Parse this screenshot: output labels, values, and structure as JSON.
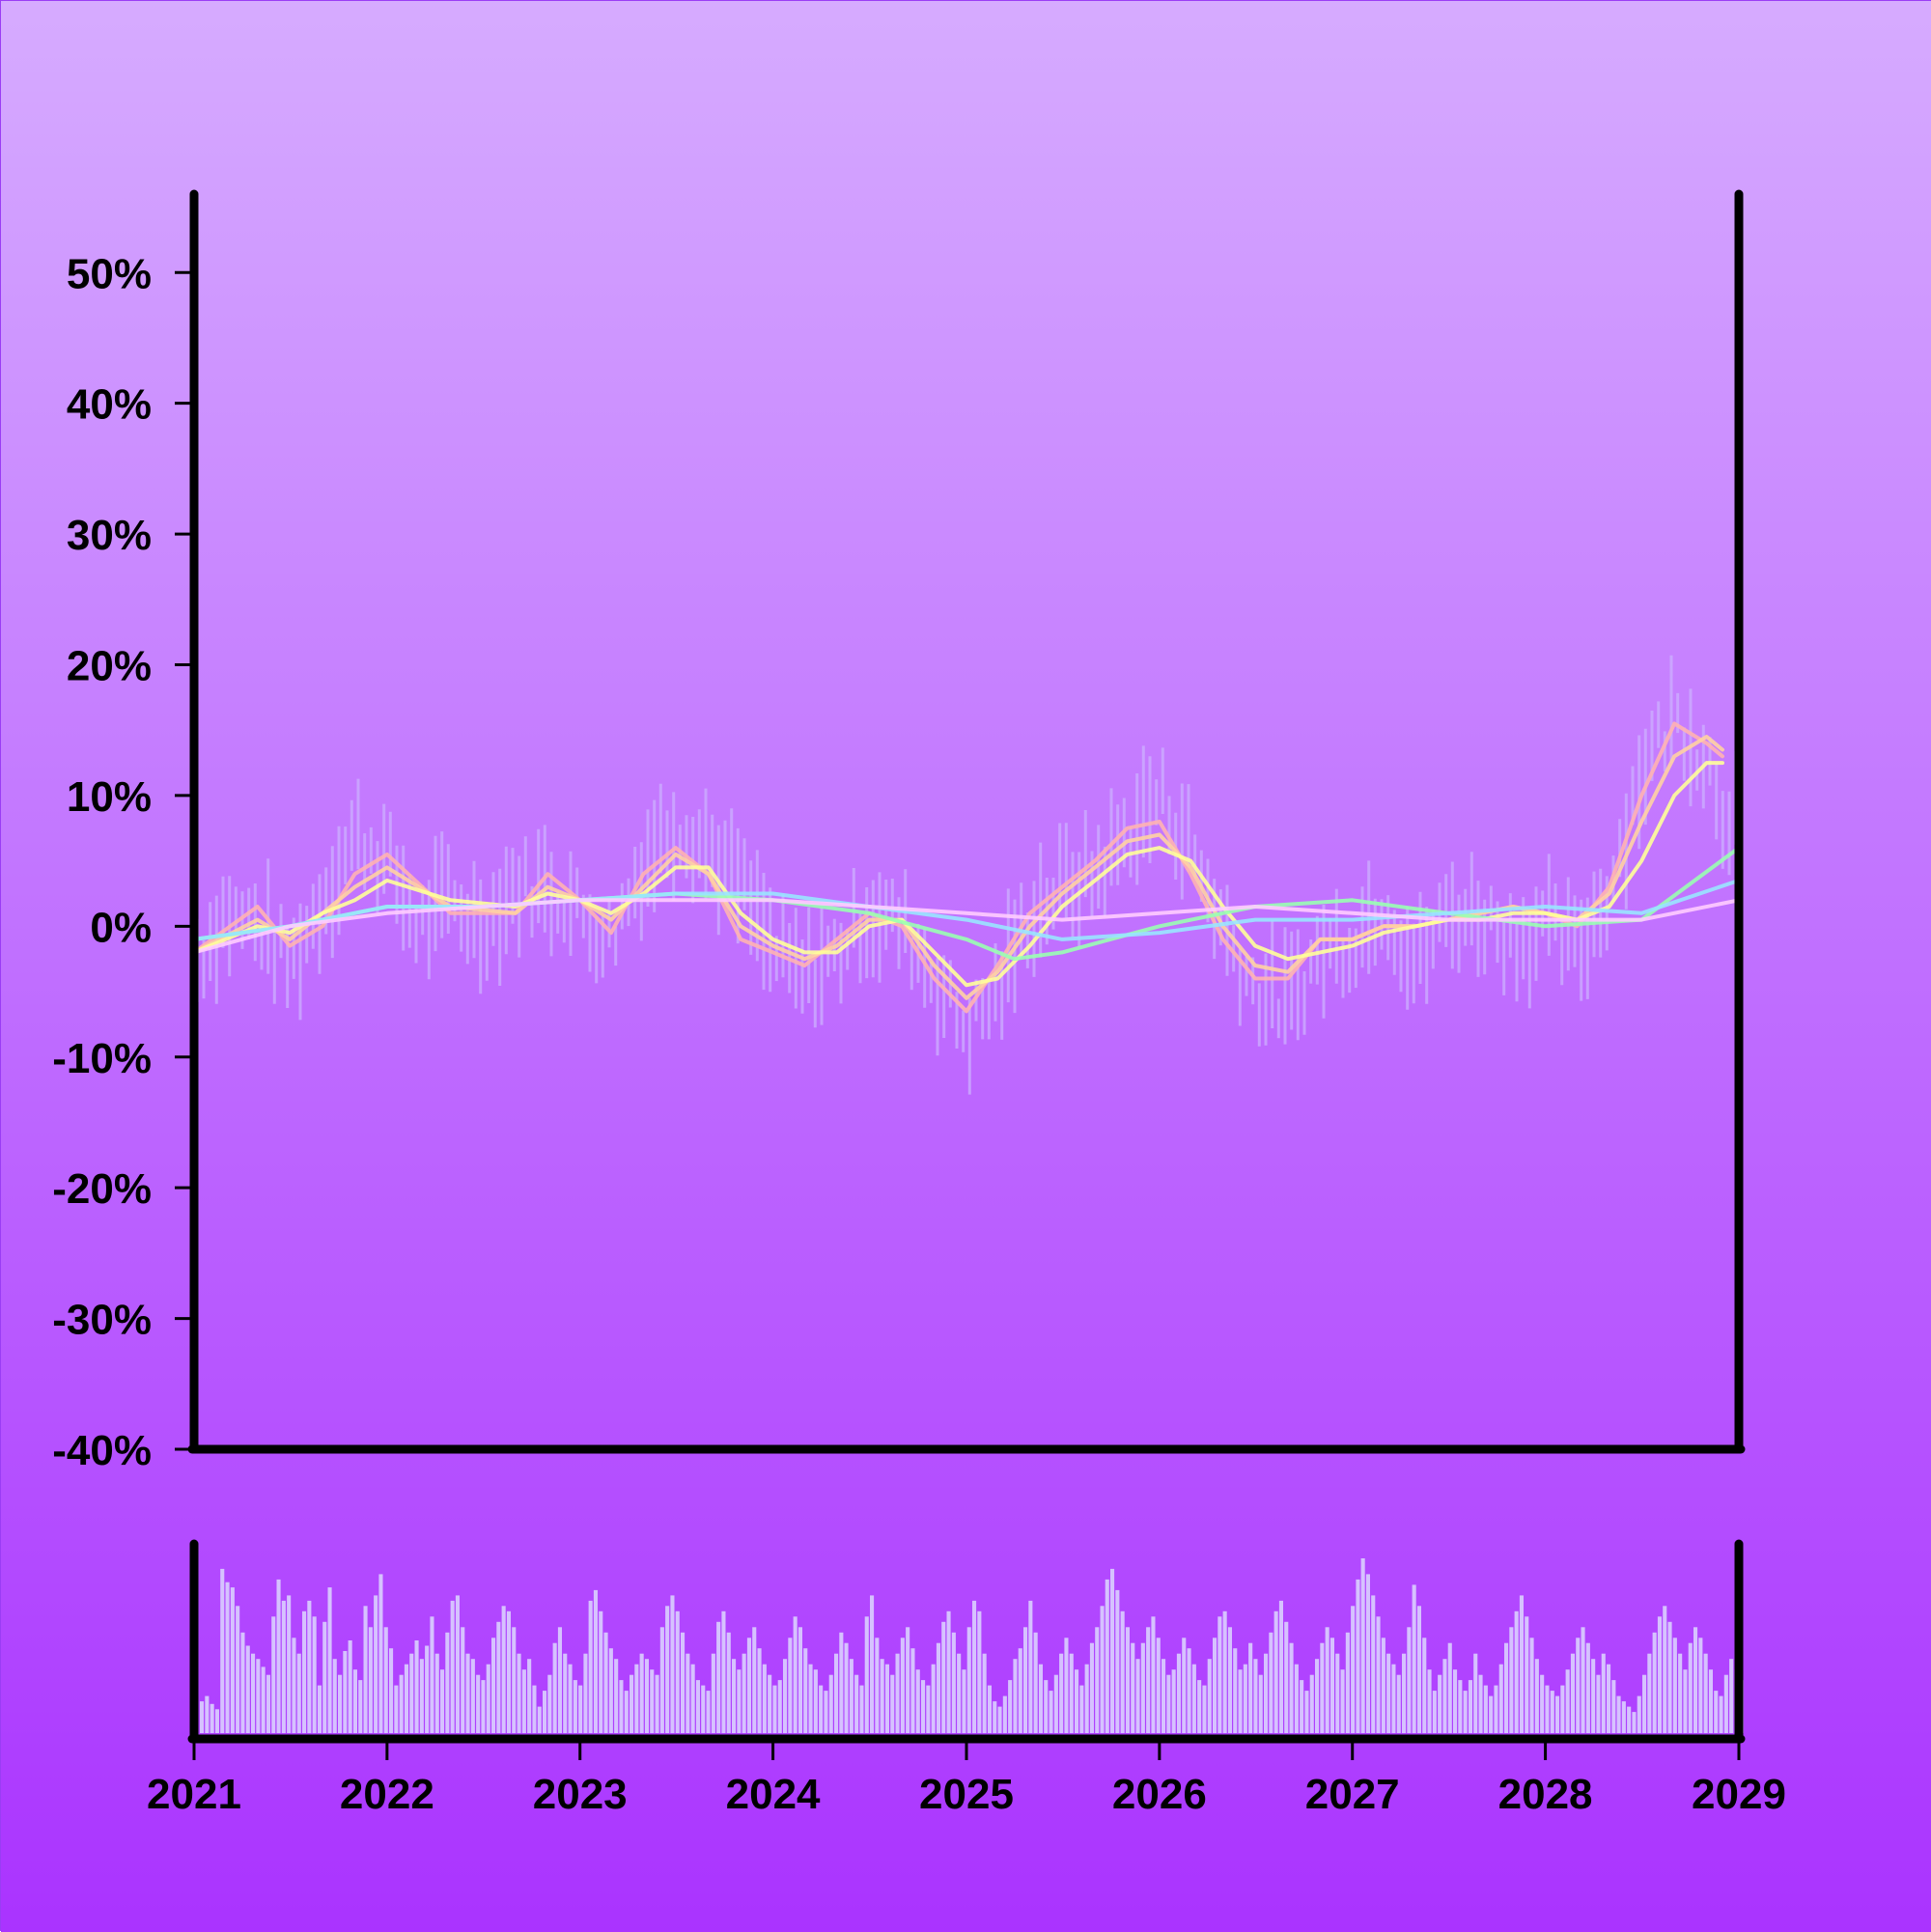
{
  "colors": {
    "background_top": "#d6abff",
    "background_bottom": "#aa33ff",
    "axis": "#000000",
    "ohlc": "#ccb0ff",
    "volume": "#d6c2ff"
  },
  "chart_data": {
    "type": "line",
    "title": "",
    "xlabel": "",
    "ylabel": "",
    "x_range": [
      "2021-01-01",
      "2029-01-01"
    ],
    "ylim": [
      -40,
      56
    ],
    "y_ticks": [
      50,
      40,
      30,
      20,
      10,
      0,
      -10,
      -20,
      -30,
      -40
    ],
    "y_tick_labels": [
      "50%",
      "40%",
      "30%",
      "20%",
      "10%",
      "0%",
      "-10%",
      "-20%",
      "-30%",
      "-40%"
    ],
    "x_tick_labels": [
      "2021",
      "2022",
      "2023",
      "2024",
      "2025",
      "2026",
      "2027",
      "2028",
      "2029"
    ],
    "x_tick_dates": [
      "2021-01-01",
      "2022-01-01",
      "2023-01-01",
      "2024-01-01",
      "2025-01-01",
      "2026-01-01",
      "2027-01-01",
      "2028-01-01",
      "2029-01-01"
    ],
    "grid": false,
    "legend": "none",
    "price_series": {
      "name": "",
      "x": [
        "2021-01",
        "2021-03",
        "2021-05",
        "2021-07",
        "2021-09",
        "2021-11",
        "2022-01",
        "2022-03",
        "2022-05",
        "2022-07",
        "2022-09",
        "2022-11",
        "2023-01",
        "2023-03",
        "2023-05",
        "2023-07",
        "2023-09",
        "2023-11",
        "2024-01",
        "2024-03",
        "2024-05",
        "2024-07",
        "2024-09",
        "2024-11",
        "2025-01",
        "2025-03",
        "2025-05",
        "2025-07",
        "2025-09",
        "2025-11",
        "2026-01",
        "2026-03",
        "2026-05",
        "2026-07",
        "2026-09",
        "2026-11",
        "2027-01",
        "2027-03",
        "2027-05",
        "2027-07",
        "2027-09",
        "2027-11",
        "2028-01",
        "2028-03",
        "2028-05",
        "2028-07",
        "2028-09",
        "2028-11",
        "2028-12"
      ],
      "values": [
        -3,
        1,
        0,
        -3,
        2,
        7,
        5,
        0,
        2,
        0,
        3,
        3,
        1,
        -1,
        5,
        8,
        6,
        3,
        -2,
        -4,
        -2,
        1,
        0,
        -4,
        -8,
        -5,
        1,
        3,
        4,
        7,
        10,
        6,
        0,
        -5,
        -6,
        -2,
        -1,
        2,
        -3,
        1,
        1,
        -1,
        0,
        -2,
        3,
        12,
        16,
        13,
        9
      ]
    },
    "series": [
      {
        "x": [
          "2021-01",
          "2021-05",
          "2021-07",
          "2021-09",
          "2021-11",
          "2022-01",
          "2022-05",
          "2022-09",
          "2022-11",
          "2023-01",
          "2023-03",
          "2023-05",
          "2023-07",
          "2023-09",
          "2023-11",
          "2024-01",
          "2024-03",
          "2024-05",
          "2024-07",
          "2024-09",
          "2024-11",
          "2025-01",
          "2025-03",
          "2025-05",
          "2025-07",
          "2025-09",
          "2025-11",
          "2026-01",
          "2026-03",
          "2026-05",
          "2026-07",
          "2026-09",
          "2026-11",
          "2027-01",
          "2027-03",
          "2027-05",
          "2027-07",
          "2027-09",
          "2027-11",
          "2028-01",
          "2028-03",
          "2028-05",
          "2028-07",
          "2028-09",
          "2028-11",
          "2028-12"
        ],
        "values": [
          -2,
          1.5,
          -1.5,
          0,
          4,
          5.5,
          1,
          1,
          4,
          2,
          -0.5,
          4,
          6,
          4,
          -1,
          -2,
          -3,
          -1,
          1,
          0,
          -4,
          -6.5,
          -3,
          1,
          3,
          5,
          7.5,
          8,
          4,
          -1,
          -4,
          -4,
          -1,
          -1,
          0,
          0,
          0.5,
          1,
          1.5,
          1,
          0,
          3,
          10,
          15.5,
          14,
          13
        ]
      },
      {
        "x": [
          "2021-01",
          "2021-05",
          "2021-07",
          "2021-09",
          "2021-11",
          "2022-01",
          "2022-05",
          "2022-09",
          "2022-11",
          "2023-01",
          "2023-03",
          "2023-05",
          "2023-07",
          "2023-09",
          "2023-11",
          "2024-01",
          "2024-03",
          "2024-05",
          "2024-07",
          "2024-09",
          "2024-11",
          "2025-01",
          "2025-03",
          "2025-05",
          "2025-07",
          "2025-09",
          "2025-11",
          "2026-01",
          "2026-03",
          "2026-05",
          "2026-07",
          "2026-09",
          "2026-11",
          "2027-01",
          "2027-03",
          "2027-05",
          "2027-07",
          "2027-09",
          "2027-11",
          "2028-01",
          "2028-03",
          "2028-05",
          "2028-07",
          "2028-09",
          "2028-11",
          "2028-12"
        ],
        "values": [
          -2,
          0.5,
          -1,
          1,
          3,
          4.5,
          1.5,
          1,
          3,
          2,
          0.5,
          3,
          5.5,
          4,
          0,
          -1.5,
          -2.5,
          -1.5,
          0.5,
          0.5,
          -3,
          -5.5,
          -3.5,
          0,
          2.5,
          4.5,
          6.5,
          7,
          4.5,
          0,
          -3,
          -3.5,
          -1,
          -1,
          0,
          0,
          0.5,
          1,
          1.5,
          1,
          0.5,
          2.5,
          8,
          13,
          14.5,
          13.5
        ]
      },
      {
        "x": [
          "2021-01",
          "2021-05",
          "2021-07",
          "2021-09",
          "2021-11",
          "2022-01",
          "2022-05",
          "2022-09",
          "2022-11",
          "2023-01",
          "2023-03",
          "2023-05",
          "2023-07",
          "2023-09",
          "2023-11",
          "2024-01",
          "2024-03",
          "2024-05",
          "2024-07",
          "2024-09",
          "2024-11",
          "2025-01",
          "2025-03",
          "2025-05",
          "2025-07",
          "2025-09",
          "2025-11",
          "2026-01",
          "2026-03",
          "2026-05",
          "2026-07",
          "2026-09",
          "2026-11",
          "2027-01",
          "2027-03",
          "2027-05",
          "2027-07",
          "2027-09",
          "2027-11",
          "2028-01",
          "2028-03",
          "2028-05",
          "2028-07",
          "2028-09",
          "2028-11",
          "2028-12"
        ],
        "values": [
          -2,
          0,
          -0.5,
          1,
          2,
          3.5,
          2,
          1.5,
          2.5,
          2,
          1,
          2.5,
          4.5,
          4.5,
          1,
          -1,
          -2,
          -2,
          0,
          0.5,
          -2,
          -4.5,
          -4,
          -1.5,
          1.5,
          3.5,
          5.5,
          6,
          5,
          1.5,
          -1.5,
          -2.5,
          -2,
          -1.5,
          -0.5,
          0,
          0.5,
          0.5,
          1,
          1,
          0.5,
          1.5,
          5,
          10,
          12.5,
          12.5
        ]
      },
      {
        "x": [
          "2021-01",
          "2021-07",
          "2022-01",
          "2022-07",
          "2023-01",
          "2023-07",
          "2024-01",
          "2024-07",
          "2025-01",
          "2025-04",
          "2025-07",
          "2026-01",
          "2026-07",
          "2027-01",
          "2027-07",
          "2028-01",
          "2028-07",
          "2029-01"
        ],
        "values": [
          -1,
          0,
          1.5,
          1.5,
          2,
          2.5,
          2,
          1,
          -1,
          -2.5,
          -2,
          0,
          1.5,
          2,
          1,
          0,
          0.5,
          6
        ]
      },
      {
        "x": [
          "2021-01",
          "2021-07",
          "2022-01",
          "2022-07",
          "2023-01",
          "2023-07",
          "2024-01",
          "2024-07",
          "2025-01",
          "2025-07",
          "2026-01",
          "2026-07",
          "2027-01",
          "2027-07",
          "2028-01",
          "2028-07",
          "2029-01"
        ],
        "values": [
          -1,
          0,
          1.5,
          1.5,
          2,
          2.5,
          2.5,
          1.5,
          0.5,
          -1,
          -0.5,
          0.5,
          0.5,
          1,
          1.5,
          1,
          3.5
        ]
      },
      {
        "x": [
          "2021-01",
          "2021-07",
          "2022-01",
          "2022-07",
          "2023-01",
          "2023-07",
          "2024-01",
          "2024-07",
          "2025-01",
          "2025-07",
          "2026-01",
          "2026-07",
          "2027-01",
          "2027-07",
          "2028-01",
          "2028-07",
          "2029-01"
        ],
        "values": [
          -2,
          0,
          1,
          1.5,
          2,
          2,
          2,
          1.5,
          1,
          0.5,
          1,
          1.5,
          1,
          0.5,
          0.5,
          0.5,
          2
        ]
      }
    ],
    "series_colors": [
      "#ffb3b3",
      "#ffd1a3",
      "#ffff99",
      "#99ffb3",
      "#99e6ff",
      "#ffccff"
    ],
    "volume": {
      "x_range": [
        "2021-01-01",
        "2029-01-01"
      ],
      "values": [
        12,
        14,
        11,
        9,
        62,
        57,
        55,
        48,
        38,
        33,
        30,
        28,
        25,
        22,
        44,
        58,
        50,
        52,
        36,
        30,
        46,
        50,
        44,
        18,
        42,
        55,
        28,
        22,
        31,
        35,
        24,
        20,
        48,
        40,
        52,
        60,
        40,
        32,
        18,
        22,
        26,
        30,
        35,
        28,
        33,
        44,
        30,
        24,
        38,
        50,
        52,
        40,
        30,
        28,
        22,
        20,
        26,
        36,
        42,
        48,
        46,
        40,
        30,
        24,
        28,
        18,
        10,
        16,
        22,
        34,
        40,
        30,
        26,
        20,
        18,
        30,
        50,
        54,
        46,
        38,
        32,
        28,
        20,
        16,
        22,
        26,
        30,
        28,
        24,
        22,
        40,
        48,
        52,
        46,
        38,
        30,
        26,
        20,
        18,
        16,
        30,
        42,
        46,
        38,
        28,
        24,
        30,
        36,
        40,
        32,
        26,
        22,
        18,
        20,
        28,
        36,
        44,
        40,
        32,
        26,
        24,
        18,
        16,
        22,
        30,
        38,
        34,
        28,
        22,
        18,
        44,
        52,
        36,
        28,
        26,
        22,
        30,
        36,
        40,
        32,
        24,
        20,
        18,
        26,
        34,
        42,
        46,
        38,
        30,
        24,
        40,
        50,
        46,
        30,
        18,
        12,
        10,
        14,
        20,
        28,
        32,
        40,
        50,
        38,
        26,
        20,
        16,
        22,
        30,
        36,
        30,
        24,
        18,
        26,
        34,
        40,
        48,
        58,
        62,
        54,
        46,
        40,
        34,
        28,
        34,
        40,
        44,
        36,
        28,
        22,
        24,
        30,
        36,
        32,
        26,
        20,
        18,
        28,
        36,
        44,
        46,
        40,
        32,
        24,
        26,
        34,
        28,
        22,
        30,
        38,
        46,
        50,
        42,
        34,
        26,
        20,
        16,
        22,
        28,
        34,
        40,
        36,
        30,
        24,
        38,
        48,
        58,
        66,
        60,
        52,
        44,
        36,
        30,
        26,
        22,
        30,
        40,
        56,
        48,
        36,
        24,
        16,
        22,
        28,
        34,
        24,
        20,
        16,
        20,
        30,
        22,
        18,
        14,
        18,
        26,
        34,
        40,
        46,
        52,
        44,
        36,
        28,
        22,
        18,
        16,
        14,
        18,
        24,
        30,
        36,
        40,
        34,
        28,
        22,
        30,
        26,
        20,
        14,
        12,
        10,
        8,
        14,
        22,
        30,
        38,
        44,
        48,
        42,
        36,
        30,
        24,
        34,
        40,
        36,
        30,
        24,
        16,
        14,
        22,
        28,
        24,
        20
      ]
    }
  }
}
